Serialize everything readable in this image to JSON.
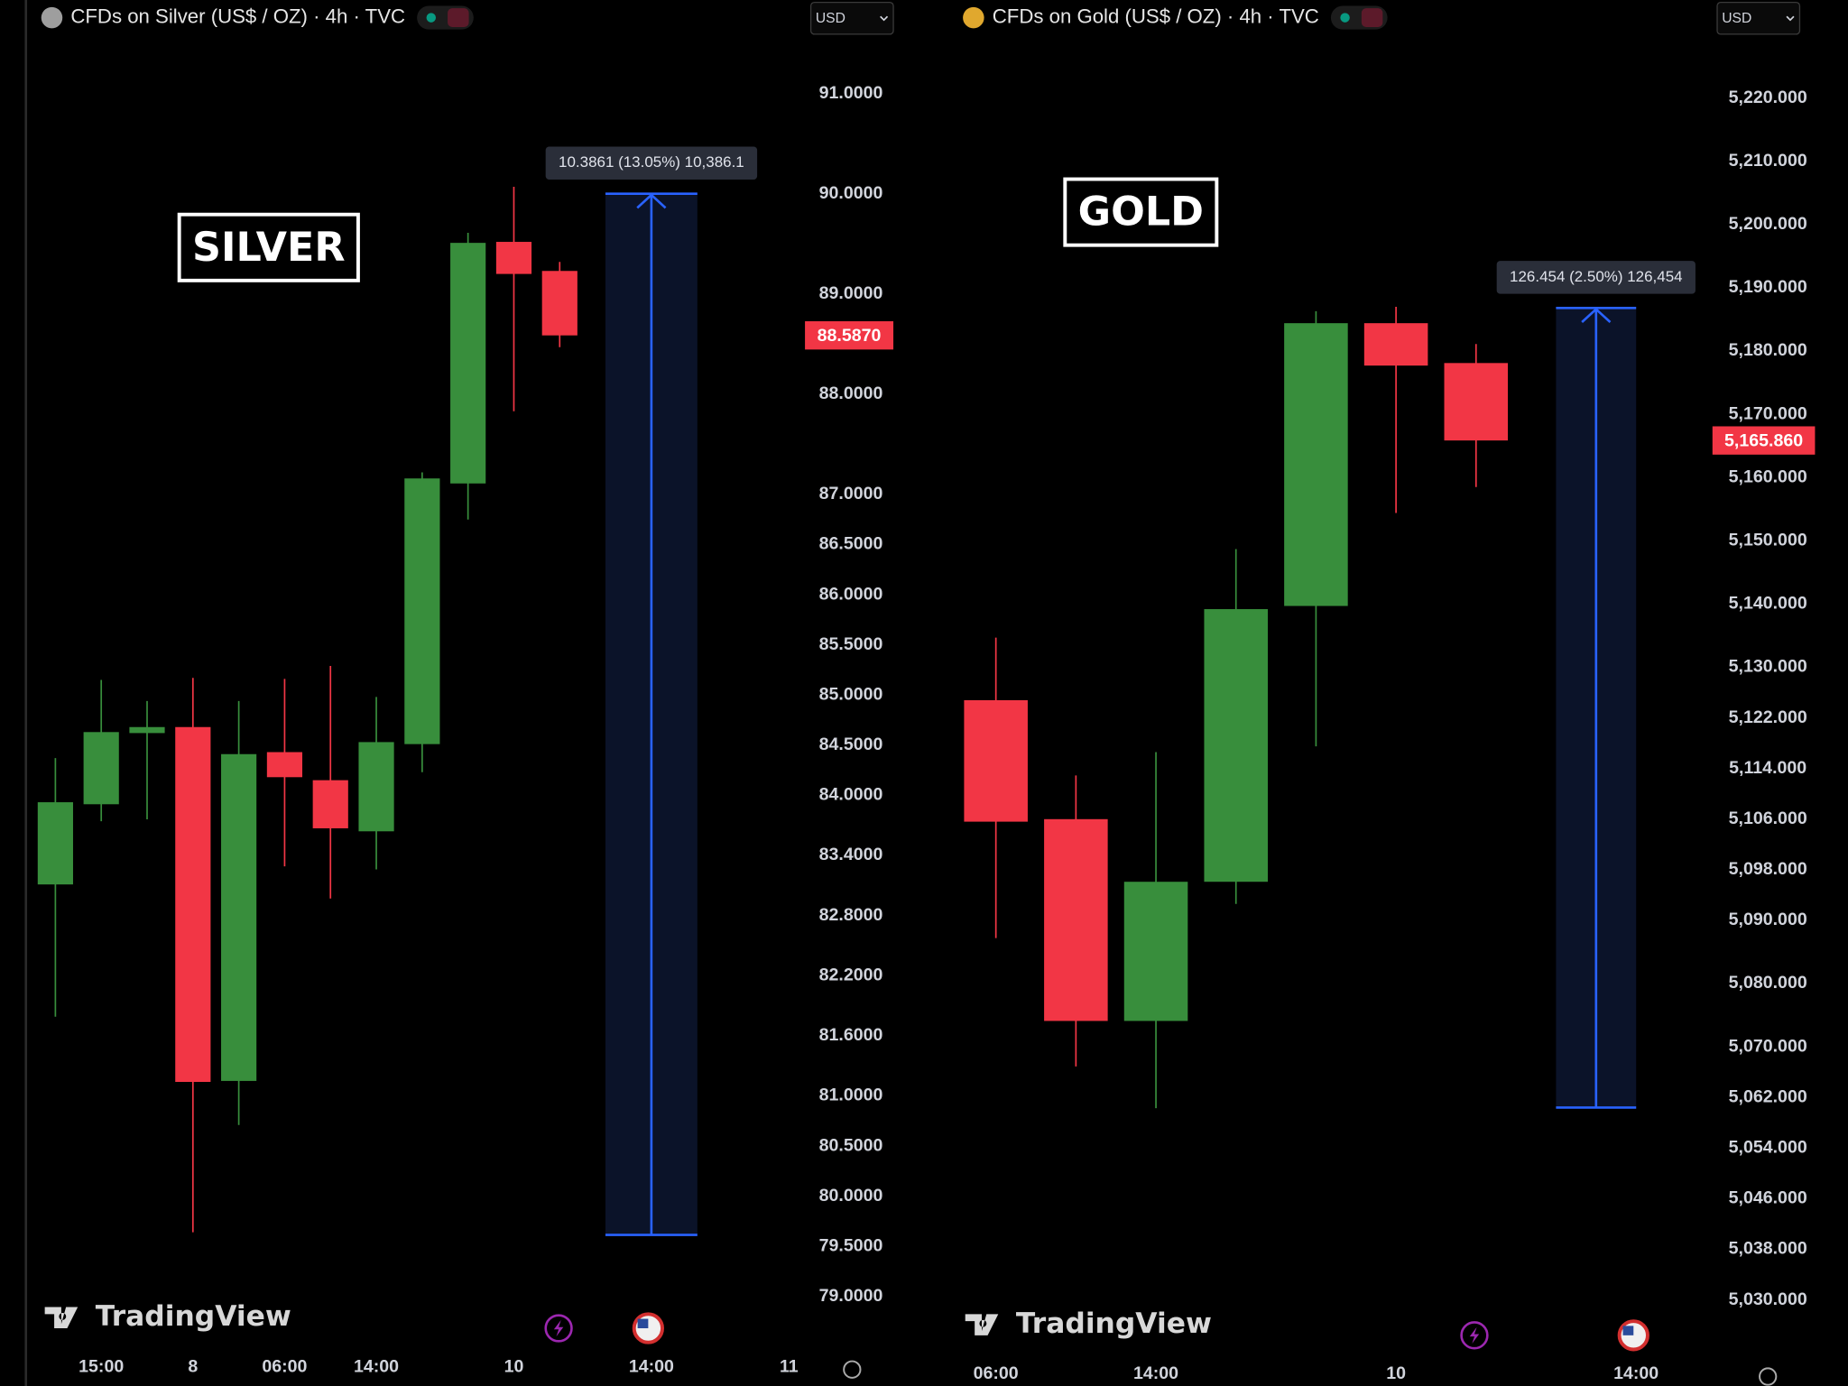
{
  "chart_data": [
    {
      "type": "candlestick",
      "title": "CFDs on Silver (US$ / OZ) · 4h · TVC",
      "currency": "USD",
      "annotation": "SILVER",
      "watermark": "TradingView",
      "categories": [
        null,
        "15:00",
        null,
        "8",
        null,
        "06:00",
        null,
        "14:00",
        null,
        null,
        "10",
        null,
        null,
        "14:00",
        null,
        null,
        "11"
      ],
      "open": [
        83.11,
        83.91,
        84.62,
        84.68,
        81.15,
        84.43,
        84.15,
        83.64,
        84.51,
        87.11,
        89.52,
        89.23,
        null,
        null,
        null,
        null,
        null
      ],
      "high": [
        84.37,
        85.15,
        84.94,
        85.17,
        84.94,
        85.16,
        85.29,
        84.98,
        87.22,
        89.61,
        90.07,
        89.32,
        null,
        null,
        null,
        null,
        null
      ],
      "low": [
        81.79,
        83.74,
        83.76,
        79.64,
        80.71,
        83.29,
        82.97,
        83.26,
        84.23,
        86.75,
        87.83,
        88.47,
        null,
        null,
        null,
        null,
        null
      ],
      "close": [
        83.93,
        84.63,
        84.68,
        81.14,
        84.41,
        84.18,
        83.67,
        84.53,
        87.16,
        89.51,
        89.2,
        88.587,
        null,
        null,
        null,
        null,
        null
      ],
      "up_color": "#388e3c",
      "down_color": "#f23645",
      "ylim": [
        78.53,
        91.58
      ],
      "yticks": [
        {
          "value": 91,
          "label": "91.0000"
        },
        {
          "value": 90,
          "label": "90.0000"
        },
        {
          "value": 89,
          "label": "89.0000"
        },
        {
          "value": 88,
          "label": "88.0000"
        },
        {
          "value": 87,
          "label": "87.0000"
        },
        {
          "value": 86.5,
          "label": "86.5000"
        },
        {
          "value": 86,
          "label": "86.0000"
        },
        {
          "value": 85.5,
          "label": "85.5000"
        },
        {
          "value": 85,
          "label": "85.0000"
        },
        {
          "value": 84.5,
          "label": "84.5000"
        },
        {
          "value": 84,
          "label": "84.0000"
        },
        {
          "value": 83.4,
          "label": "83.4000"
        },
        {
          "value": 82.8,
          "label": "82.8000"
        },
        {
          "value": 82.2,
          "label": "82.2000"
        },
        {
          "value": 81.6,
          "label": "81.6000"
        },
        {
          "value": 81,
          "label": "81.0000"
        },
        {
          "value": 80.5,
          "label": "80.5000"
        },
        {
          "value": 80,
          "label": "80.0000"
        },
        {
          "value": 79.5,
          "label": "79.5000"
        },
        {
          "value": 79,
          "label": "79.0000"
        }
      ],
      "last_price": {
        "value": 88.587,
        "label": "88.5870"
      },
      "measure": {
        "from": 79.614,
        "to": 90.0,
        "label": "10.3861 (13.05%) 10,386.1"
      }
    },
    {
      "type": "candlestick",
      "title": "CFDs on Gold (US$ / OZ) · 4h · TVC",
      "currency": "USD",
      "annotation": "GOLD",
      "watermark": "TradingView",
      "categories": [
        "06:00",
        null,
        "14:00",
        null,
        null,
        "10",
        null,
        null,
        "14:00"
      ],
      "open": [
        5124.8,
        5106.0,
        5074.1,
        5096.1,
        5139.7,
        5184.4,
        5178.1,
        null,
        null
      ],
      "high": [
        5134.7,
        5112.9,
        5116.6,
        5148.7,
        5186.3,
        5187.0,
        5181.1,
        null,
        null
      ],
      "low": [
        5087.2,
        5066.9,
        5060.3,
        5092.6,
        5117.5,
        5154.4,
        5158.5,
        null,
        null
      ],
      "close": [
        5105.6,
        5074.1,
        5096.1,
        5139.2,
        5184.4,
        5177.7,
        5165.86,
        null,
        null
      ],
      "up_color": "#388e3c",
      "down_color": "#f23645",
      "ylim": [
        5023.1,
        5229.9
      ],
      "yticks": [
        {
          "value": 5220,
          "label": "5,220.000"
        },
        {
          "value": 5210,
          "label": "5,210.000"
        },
        {
          "value": 5200,
          "label": "5,200.000"
        },
        {
          "value": 5190,
          "label": "5,190.000"
        },
        {
          "value": 5180,
          "label": "5,180.000"
        },
        {
          "value": 5170,
          "label": "5,170.000"
        },
        {
          "value": 5160,
          "label": "5,160.000"
        },
        {
          "value": 5150,
          "label": "5,150.000"
        },
        {
          "value": 5140,
          "label": "5,140.000"
        },
        {
          "value": 5130,
          "label": "5,130.000"
        },
        {
          "value": 5122,
          "label": "5,122.000"
        },
        {
          "value": 5114,
          "label": "5,114.000"
        },
        {
          "value": 5106,
          "label": "5,106.000"
        },
        {
          "value": 5098,
          "label": "5,098.000"
        },
        {
          "value": 5090,
          "label": "5,090.000"
        },
        {
          "value": 5080,
          "label": "5,080.000"
        },
        {
          "value": 5070,
          "label": "5,070.000"
        },
        {
          "value": 5062,
          "label": "5,062.000"
        },
        {
          "value": 5054,
          "label": "5,054.000"
        },
        {
          "value": 5046,
          "label": "5,046.000"
        },
        {
          "value": 5038,
          "label": "5,038.000"
        },
        {
          "value": 5030,
          "label": "5,030.000"
        }
      ],
      "last_price": {
        "value": 5165.86,
        "label": "5,165.860"
      },
      "measure": {
        "from": 5060.4,
        "to": 5186.8,
        "label": "126.454 (2.50%) 126,454"
      }
    }
  ]
}
